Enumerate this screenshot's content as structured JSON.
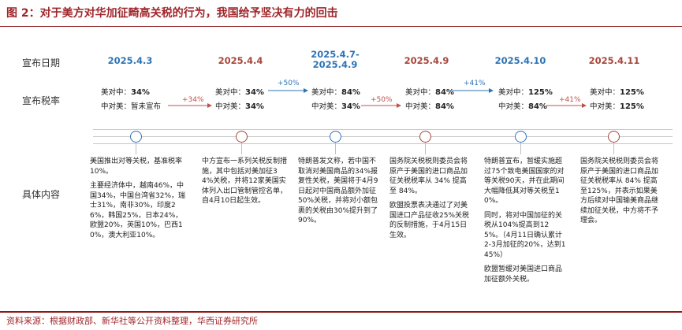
{
  "title": "图 2：对于美方对华加征畸高关税的行为，我国给予坚决有力的回击",
  "row_labels": {
    "date": "宣布日期",
    "rate": "宣布税率",
    "content": "具体内容"
  },
  "events": [
    {
      "date": "2025.4.3",
      "color": "blue",
      "rates": [
        {
          "label": "美对中：",
          "value": "34%"
        },
        {
          "label": "中对美：",
          "value": "暂未宣布"
        }
      ],
      "content": [
        "美国推出对等关税，基准税率10%。",
        "主要经济体中，越南46%，中国34%，中国台湾省32%，瑞士31%，南非30%，印度26%，韩国25%，日本24%，欧盟20%，英国10%，巴西10%，澳大利亚10%。"
      ]
    },
    {
      "date": "2025.4.4",
      "color": "red",
      "rates": [
        {
          "label": "美对中：",
          "value": "34%"
        },
        {
          "label": "中对美：",
          "value": "34%"
        }
      ],
      "content": [
        "中方宣布一系列关税反制措施，其中包括对美加征34%关税，并将12家美国实体列入出口管制管控名单，自4月10日起生效。"
      ]
    },
    {
      "date": "2025.4.7-\n2025.4.9",
      "color": "blue",
      "rates": [
        {
          "label": "美对中：",
          "value": "84%"
        },
        {
          "label": "中对美：",
          "value": "34%"
        }
      ],
      "content": [
        "特朗普发文称，若中国不取消对美国商品的34%报复性关税，美国将于4月9日起对中国商品额外加征50%关税，并将对小额包裹的关税由30%提升到了90%。"
      ]
    },
    {
      "date": "2025.4.9",
      "color": "red",
      "rates": [
        {
          "label": "美对中：",
          "value": "84%"
        },
        {
          "label": "中对美：",
          "value": "84%"
        }
      ],
      "content": [
        "国务院关税税则委员会将原产于美国的进口商品加征关税税率从 34% 提高至 84%。",
        "欧盟投票表决通过了对美国进口产品征收25%关税的反制措施，于4月15日生效。"
      ]
    },
    {
      "date": "2025.4.10",
      "color": "blue",
      "rates": [
        {
          "label": "美对中：",
          "value": "125%"
        },
        {
          "label": "中对美：",
          "value": "84%"
        }
      ],
      "content": [
        "特朗普宣布，暂缓实施超过75个致电美国国家的对等关税90天，并在此期间大幅降低其对等关税至10%。",
        "同时，将对中国加征的关税从104%提高到125%。（4月11日确认累计2-3月加征的20%，达到145%）",
        "欧盟暂缓对美国进口商品加征额外关税。"
      ]
    },
    {
      "date": "2025.4.11",
      "color": "red",
      "rates": [
        {
          "label": "美对中：",
          "value": "125%"
        },
        {
          "label": "中对美：",
          "value": "125%"
        }
      ],
      "content": [
        "国务院关税税则委员会将原产于美国的进口商品加征关税税率从 84% 提高至125%，并表示如果美方后续对中国输美商品继续加征关税，中方将不予理会。"
      ]
    }
  ],
  "increments": [
    {
      "label": "+34%",
      "color": "red"
    },
    {
      "label": "+50%",
      "color": "blue"
    },
    {
      "label": "+50%",
      "color": "red"
    },
    {
      "label": "+41%",
      "color": "blue"
    },
    {
      "label": "+41%",
      "color": "red"
    }
  ],
  "colors": {
    "blue": "#2e74b5",
    "red": "#a5473c",
    "arrow_red": "#c0504d",
    "title": "#a0252a"
  },
  "source": "资料来源：根据财政部、新华社等公开资料整理，华西证券研究所"
}
